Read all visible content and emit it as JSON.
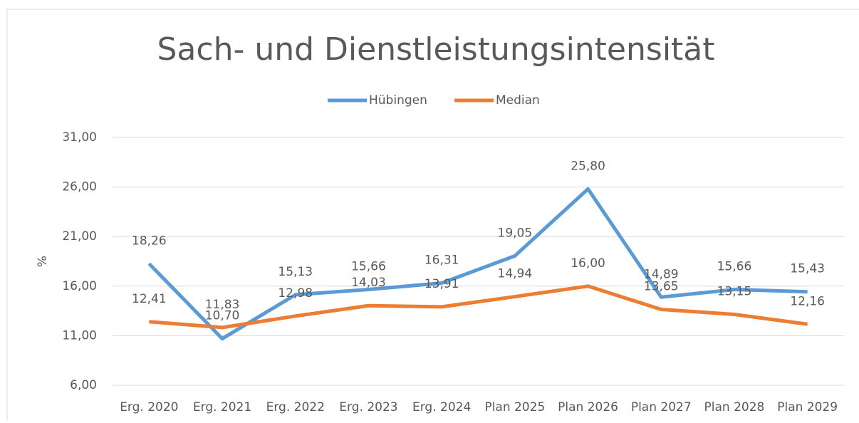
{
  "chart_data": {
    "type": "line",
    "title": "Sach- und Dienstleistungsintensität",
    "y_label": "%",
    "categories": [
      "Erg. 2020",
      "Erg. 2021",
      "Erg. 2022",
      "Erg. 2023",
      "Erg. 2024",
      "Plan 2025",
      "Plan 2026",
      "Plan 2027",
      "Plan 2028",
      "Plan 2029"
    ],
    "series": [
      {
        "name": "Hübingen",
        "color": "#5b9bd5",
        "values": [
          18.26,
          10.7,
          15.13,
          15.66,
          16.31,
          19.05,
          25.8,
          14.89,
          15.66,
          15.43
        ],
        "value_labels": [
          "18,26",
          "10,70",
          "15,13",
          "15,66",
          "16,31",
          "19,05",
          "25,80",
          "14,89",
          "15,66",
          "15,43"
        ]
      },
      {
        "name": "Median",
        "color": "#ed7d31",
        "values": [
          12.41,
          11.83,
          12.98,
          14.03,
          13.91,
          14.94,
          16.0,
          13.65,
          13.15,
          12.16
        ],
        "value_labels": [
          "12,41",
          "11,83",
          "12,98",
          "14,03",
          "13,91",
          "14,94",
          "16,00",
          "13,65",
          "13,15",
          "12,16"
        ]
      }
    ],
    "ylim": [
      6,
      31
    ],
    "yticks": [
      {
        "value": 6,
        "label": "6,00"
      },
      {
        "value": 11,
        "label": "11,00"
      },
      {
        "value": 16,
        "label": "16,00"
      },
      {
        "value": 21,
        "label": "21,00"
      },
      {
        "value": 26,
        "label": "26,00"
      },
      {
        "value": 31,
        "label": "31,00"
      }
    ],
    "grid": true,
    "legend": "top"
  }
}
